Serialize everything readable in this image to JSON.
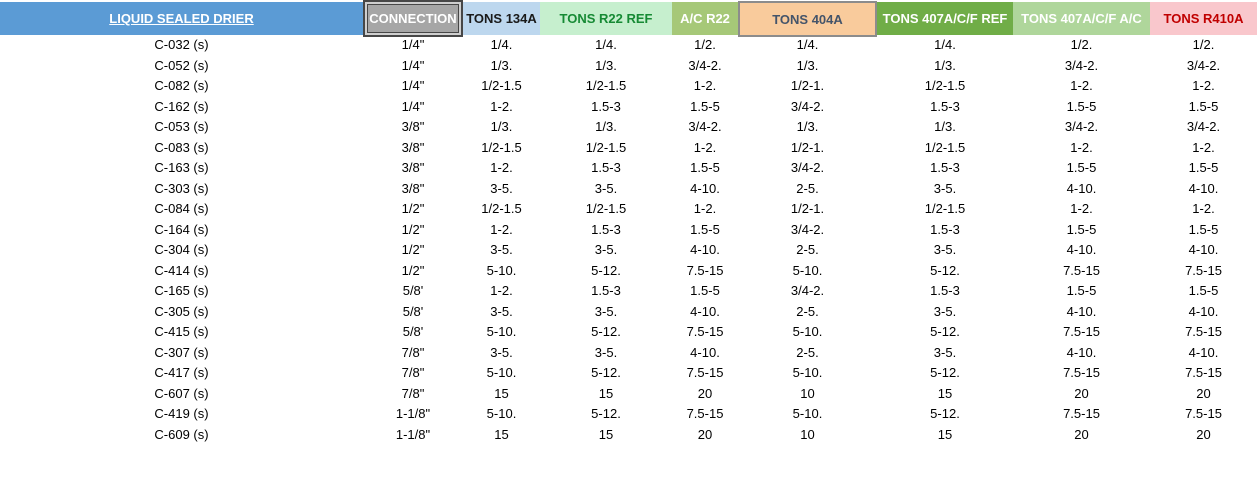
{
  "table": {
    "header": {
      "columns": [
        {
          "id": "liquid-sealed-drier",
          "label": "LIQUID SEALED DRIER",
          "bg": "#5B9BD5",
          "color": "#FFFFFF",
          "underline": true
        },
        {
          "id": "connection",
          "label": "CONNECTION",
          "bg": "#A6A6A6",
          "color": "#FFFFFF",
          "border": "selected-double-dark"
        },
        {
          "id": "tons-134a",
          "label": "TONS 134A",
          "bg": "#BDD7EE",
          "color": "#1A1A1A"
        },
        {
          "id": "tons-r22-ref",
          "label": "TONS R22 REF",
          "bg": "#C6EFCE",
          "color": "#168A34"
        },
        {
          "id": "ac-r22",
          "label": "A/C R22",
          "bg": "#A6C878",
          "color": "#FFFFFF"
        },
        {
          "id": "tons-404a",
          "label": "TONS 404A",
          "bg": "#F9CB9C",
          "color": "#44546A",
          "border": "solid-gray"
        },
        {
          "id": "tons-407acf-ref",
          "label": "TONS 407A/C/F REF",
          "bg": "#70AD47",
          "color": "#FFFFFF"
        },
        {
          "id": "tons-407acf-ac",
          "label": "TONS 407A/C/F A/C",
          "bg": "#AFD69B",
          "color": "#FFFFFF"
        },
        {
          "id": "tons-r410a",
          "label": "TONS R410A",
          "bg": "#F9C7CC",
          "color": "#C00000"
        }
      ]
    },
    "rows": [
      [
        "C-032 (s)",
        "1/4\"",
        "1/4.",
        "1/4.",
        "1/2.",
        "1/4.",
        "1/4.",
        "1/2.",
        "1/2."
      ],
      [
        "C-052 (s)",
        "1/4\"",
        "1/3.",
        "1/3.",
        "3/4-2.",
        "1/3.",
        "1/3.",
        "3/4-2.",
        "3/4-2."
      ],
      [
        "C-082 (s)",
        "1/4\"",
        "1/2-1.5",
        "1/2-1.5",
        "1-2.",
        "1/2-1.",
        "1/2-1.5",
        "1-2.",
        "1-2."
      ],
      [
        "C-162 (s)",
        "1/4\"",
        "1-2.",
        "1.5-3",
        "1.5-5",
        "3/4-2.",
        "1.5-3",
        "1.5-5",
        "1.5-5"
      ],
      [
        "C-053 (s)",
        "3/8\"",
        "1/3.",
        "1/3.",
        "3/4-2.",
        "1/3.",
        "1/3.",
        "3/4-2.",
        "3/4-2."
      ],
      [
        "C-083 (s)",
        "3/8\"",
        "1/2-1.5",
        "1/2-1.5",
        "1-2.",
        "1/2-1.",
        "1/2-1.5",
        "1-2.",
        "1-2."
      ],
      [
        "C-163 (s)",
        "3/8\"",
        "1-2.",
        "1.5-3",
        "1.5-5",
        "3/4-2.",
        "1.5-3",
        "1.5-5",
        "1.5-5"
      ],
      [
        "C-303 (s)",
        "3/8\"",
        "3-5.",
        "3-5.",
        "4-10.",
        "2-5.",
        "3-5.",
        "4-10.",
        "4-10."
      ],
      [
        "C-084 (s)",
        "1/2\"",
        "1/2-1.5",
        "1/2-1.5",
        "1-2.",
        "1/2-1.",
        "1/2-1.5",
        "1-2.",
        "1-2."
      ],
      [
        "C-164 (s)",
        "1/2\"",
        "1-2.",
        "1.5-3",
        "1.5-5",
        "3/4-2.",
        "1.5-3",
        "1.5-5",
        "1.5-5"
      ],
      [
        "C-304 (s)",
        "1/2\"",
        "3-5.",
        "3-5.",
        "4-10.",
        "2-5.",
        "3-5.",
        "4-10.",
        "4-10."
      ],
      [
        "C-414 (s)",
        "1/2\"",
        "5-10.",
        "5-12.",
        "7.5-15",
        "5-10.",
        "5-12.",
        "7.5-15",
        "7.5-15"
      ],
      [
        "C-165 (s)",
        "5/8'",
        "1-2.",
        "1.5-3",
        "1.5-5",
        "3/4-2.",
        "1.5-3",
        "1.5-5",
        "1.5-5"
      ],
      [
        "C-305 (s)",
        "5/8'",
        "3-5.",
        "3-5.",
        "4-10.",
        "2-5.",
        "3-5.",
        "4-10.",
        "4-10."
      ],
      [
        "C-415 (s)",
        "5/8'",
        "5-10.",
        "5-12.",
        "7.5-15",
        "5-10.",
        "5-12.",
        "7.5-15",
        "7.5-15"
      ],
      [
        "C-307 (s)",
        "7/8\"",
        "3-5.",
        "3-5.",
        "4-10.",
        "2-5.",
        "3-5.",
        "4-10.",
        "4-10."
      ],
      [
        "C-417 (s)",
        "7/8\"",
        "5-10.",
        "5-12.",
        "7.5-15",
        "5-10.",
        "5-12.",
        "7.5-15",
        "7.5-15"
      ],
      [
        "C-607 (s)",
        "7/8\"",
        "15",
        "15",
        "20",
        "10",
        "15",
        "20",
        "20"
      ],
      [
        "C-419 (s)",
        "1-1/8\"",
        "5-10.",
        "5-12.",
        "7.5-15",
        "5-10.",
        "5-12.",
        "7.5-15",
        "7.5-15"
      ],
      [
        "C-609 (s)",
        "1-1/8\"",
        "15",
        "15",
        "20",
        "10",
        "15",
        "20",
        "20"
      ]
    ]
  }
}
